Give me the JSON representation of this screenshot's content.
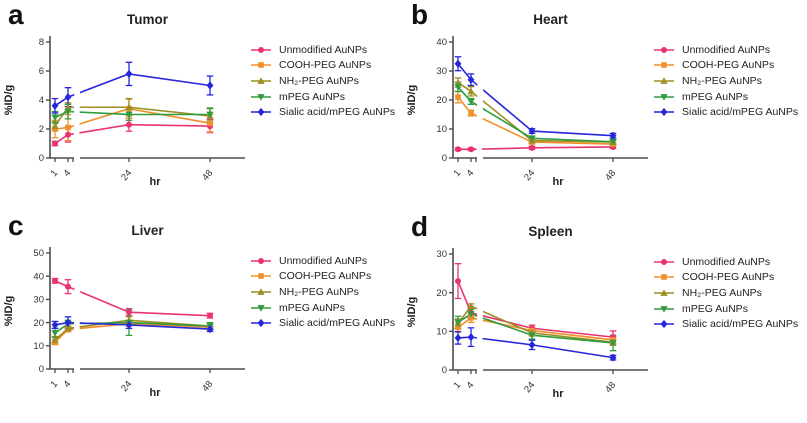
{
  "figure": {
    "axis_color": "#4d4d4d",
    "tick_text_color": "#333333",
    "background": "#ffffff"
  },
  "chart_data": [
    {
      "type": "line",
      "panel_label": "a",
      "title": "Tumor",
      "xlabel": "hr",
      "ylabel": "%ID/g",
      "x": [
        1,
        4,
        24,
        48
      ],
      "xtick_labels": [
        "1",
        "4",
        "24",
        "48"
      ],
      "ylim": [
        0,
        8
      ],
      "yticks": [
        0,
        2,
        4,
        6,
        8
      ],
      "axis_break_between": [
        4,
        24
      ],
      "legend_position": "right",
      "series": [
        {
          "name": "Unmodified AuNPs",
          "color": "#e8336f",
          "marker": "circle",
          "values": [
            1.0,
            1.6,
            2.3,
            2.2
          ],
          "errors": [
            0.15,
            0.5,
            0.45,
            0.45
          ]
        },
        {
          "name": "COOH-PEG AuNPs",
          "color": "#f0902a",
          "marker": "square",
          "values": [
            2.0,
            2.1,
            3.4,
            2.4
          ],
          "errors": [
            0.6,
            0.9,
            0.65,
            0.6
          ]
        },
        {
          "name": "NH₂-PEG AuNPs",
          "color": "#9c8e24",
          "marker": "triangle-up",
          "values": [
            2.2,
            3.5,
            3.5,
            2.9
          ],
          "errors": [
            0.3,
            0.3,
            0.6,
            0.5
          ]
        },
        {
          "name": "mPEG AuNPs",
          "color": "#2f9c3e",
          "marker": "triangle-down",
          "values": [
            2.8,
            3.2,
            3.0,
            3.0
          ],
          "errors": [
            0.4,
            0.5,
            0.4,
            0.45
          ]
        },
        {
          "name": "Sialic acid/mPEG AuNPs",
          "color": "#2526dd",
          "marker": "diamond",
          "values": [
            3.6,
            4.2,
            5.8,
            5.0
          ],
          "errors": [
            0.5,
            0.65,
            0.8,
            0.65
          ]
        }
      ]
    },
    {
      "type": "line",
      "panel_label": "b",
      "title": "Heart",
      "xlabel": "hr",
      "ylabel": "%ID/g",
      "x": [
        1,
        4,
        24,
        48
      ],
      "xtick_labels": [
        "1",
        "4",
        "24",
        "48"
      ],
      "ylim": [
        0,
        40
      ],
      "yticks": [
        0,
        10,
        20,
        30,
        40
      ],
      "axis_break_between": [
        4,
        24
      ],
      "legend_position": "right",
      "series": [
        {
          "name": "Unmodified AuNPs",
          "color": "#e8336f",
          "marker": "circle",
          "values": [
            3.0,
            3.0,
            3.5,
            3.8
          ],
          "errors": [
            0.4,
            0.4,
            0.5,
            0.5
          ]
        },
        {
          "name": "COOH-PEG AuNPs",
          "color": "#f0902a",
          "marker": "square",
          "values": [
            21.0,
            15.5,
            5.5,
            4.8
          ],
          "errors": [
            2.0,
            1.0,
            0.6,
            0.6
          ]
        },
        {
          "name": "NH₂-PEG AuNPs",
          "color": "#9c8e24",
          "marker": "triangle-up",
          "values": [
            26.0,
            23.0,
            6.0,
            5.5
          ],
          "errors": [
            1.6,
            1.6,
            0.6,
            0.6
          ]
        },
        {
          "name": "mPEG AuNPs",
          "color": "#2f9c3e",
          "marker": "triangle-down",
          "values": [
            24.5,
            19.5,
            6.8,
            5.6
          ],
          "errors": [
            1.6,
            1.0,
            0.7,
            0.8
          ]
        },
        {
          "name": "Sialic acid/mPEG AuNPs",
          "color": "#2526dd",
          "marker": "diamond",
          "values": [
            32.5,
            27.0,
            9.3,
            7.7
          ],
          "errors": [
            2.4,
            2.0,
            0.8,
            0.8
          ]
        }
      ]
    },
    {
      "type": "line",
      "panel_label": "c",
      "title": "Liver",
      "xlabel": "hr",
      "ylabel": "%ID/g",
      "x": [
        1,
        4,
        24,
        48
      ],
      "xtick_labels": [
        "1",
        "4",
        "24",
        "48"
      ],
      "ylim": [
        0,
        50
      ],
      "yticks": [
        0,
        10,
        20,
        30,
        40,
        50
      ],
      "axis_break_between": [
        4,
        24
      ],
      "legend_position": "right",
      "series": [
        {
          "name": "Unmodified AuNPs",
          "color": "#e8336f",
          "marker": "circle",
          "values": [
            38.0,
            35.5,
            24.5,
            23.0
          ],
          "errors": [
            1.0,
            3.0,
            1.5,
            1.0
          ]
        },
        {
          "name": "COOH-PEG AuNPs",
          "color": "#f0902a",
          "marker": "square",
          "values": [
            11.5,
            17.0,
            19.5,
            18.0
          ],
          "errors": [
            1.0,
            1.0,
            1.0,
            1.0
          ]
        },
        {
          "name": "NH₂-PEG AuNPs",
          "color": "#9c8e24",
          "marker": "triangle-up",
          "values": [
            12.5,
            17.5,
            21.0,
            18.5
          ],
          "errors": [
            1.5,
            1.0,
            1.5,
            1.5
          ]
        },
        {
          "name": "mPEG AuNPs",
          "color": "#2f9c3e",
          "marker": "triangle-down",
          "values": [
            15.5,
            19.5,
            20.0,
            18.5
          ],
          "errors": [
            2.0,
            1.5,
            5.5,
            1.5
          ]
        },
        {
          "name": "Sialic acid/mPEG AuNPs",
          "color": "#2526dd",
          "marker": "diamond",
          "values": [
            19.0,
            20.0,
            19.0,
            17.2
          ],
          "errors": [
            1.5,
            2.5,
            1.5,
            1.0
          ]
        }
      ]
    },
    {
      "type": "line",
      "panel_label": "d",
      "title": "Spleen",
      "xlabel": "hr",
      "ylabel": "%ID/g",
      "x": [
        1,
        4,
        24,
        48
      ],
      "xtick_labels": [
        "1",
        "4",
        "24",
        "48"
      ],
      "ylim": [
        0,
        30
      ],
      "yticks": [
        0,
        10,
        20,
        30
      ],
      "axis_break_between": [
        4,
        24
      ],
      "legend_position": "right",
      "series": [
        {
          "name": "Unmodified AuNPs",
          "color": "#e8336f",
          "marker": "circle",
          "values": [
            23.0,
            14.8,
            10.8,
            8.5
          ],
          "errors": [
            4.5,
            1.2,
            0.8,
            1.6
          ]
        },
        {
          "name": "COOH-PEG AuNPs",
          "color": "#f0902a",
          "marker": "square",
          "values": [
            11.0,
            13.5,
            10.2,
            7.8
          ],
          "errors": [
            1.2,
            1.2,
            0.8,
            0.8
          ]
        },
        {
          "name": "NH₂-PEG AuNPs",
          "color": "#9c8e24",
          "marker": "triangle-up",
          "values": [
            12.0,
            16.5,
            9.6,
            7.2
          ],
          "errors": [
            1.2,
            0.6,
            0.8,
            0.8
          ]
        },
        {
          "name": "mPEG AuNPs",
          "color": "#2f9c3e",
          "marker": "triangle-down",
          "values": [
            12.3,
            14.5,
            9.0,
            7.0
          ],
          "errors": [
            1.6,
            1.2,
            1.0,
            2.0
          ]
        },
        {
          "name": "Sialic acid/mPEG AuNPs",
          "color": "#2526dd",
          "marker": "diamond",
          "values": [
            8.3,
            8.5,
            6.5,
            3.2
          ],
          "errors": [
            1.6,
            2.4,
            1.2,
            0.6
          ]
        }
      ]
    }
  ]
}
